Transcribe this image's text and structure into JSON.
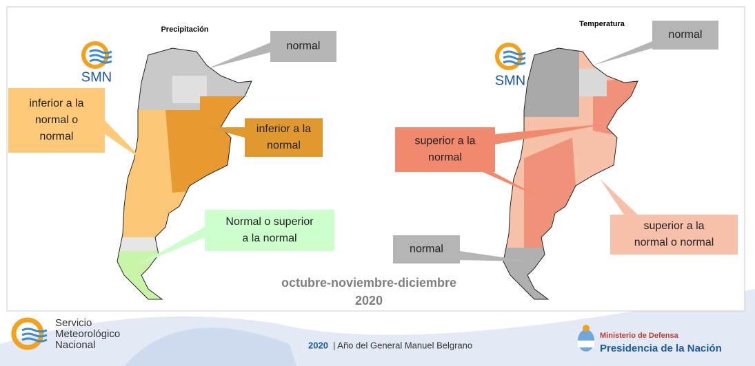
{
  "slide": {
    "maps": [
      {
        "title": "Precipitación",
        "logo": "SMN"
      },
      {
        "title": "Temperatura",
        "logo": "SMN"
      }
    ],
    "callouts": [
      {
        "lines": [
          "normal"
        ]
      },
      {
        "lines": [
          "inferior a la",
          "normal o",
          "normal"
        ]
      },
      {
        "lines": [
          "inferior a la",
          "normal"
        ]
      },
      {
        "lines": [
          "Normal o superior",
          "a la normal"
        ]
      },
      {
        "lines": [
          "normal"
        ]
      },
      {
        "lines": [
          "superior a la",
          "normal"
        ]
      },
      {
        "lines": [
          "superior a la",
          "normal o normal"
        ]
      },
      {
        "lines": [
          "normal"
        ]
      }
    ],
    "period": "octubre-noviembre-diciembre",
    "year": "2020"
  },
  "footer": {
    "org": [
      "Servicio",
      "Meteorológico",
      "Nacional"
    ],
    "year": "2020",
    "motto": "| Año del General Manuel Belgrano",
    "ministry": "Ministerio de Defensa",
    "presidency": "Presidencia de la Nación"
  }
}
